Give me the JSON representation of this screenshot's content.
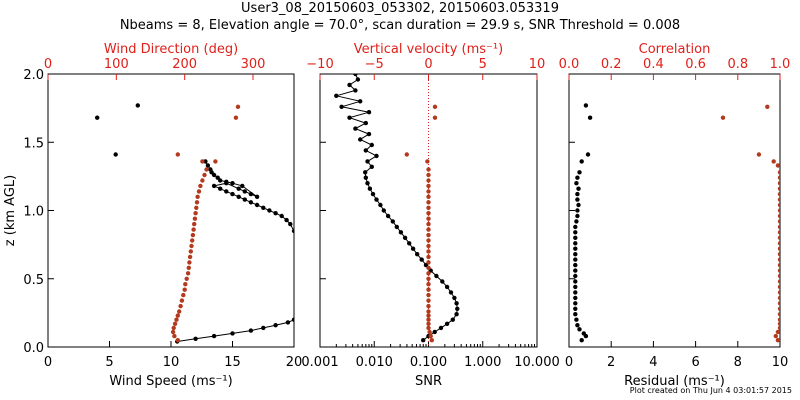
{
  "header": {
    "title": "User3_08_20150603_053302, 20150603.053319",
    "subtitle": "Nbeams = 8, Elevation angle = 70.0°, scan duration = 29.9 s, SNR Threshold = 0.008"
  },
  "footer": {
    "text": "Plot created on Thu Jun  4 03:01:57 2015"
  },
  "colors": {
    "black_series": "#000000",
    "red_series": "#b33a1e",
    "red_axis": "#e0201a"
  },
  "chart_data": [
    {
      "type": "scatter",
      "name": "wind-panel",
      "ylabel": "z (km AGL)",
      "xlabel": "Wind Speed (ms⁻¹)",
      "x2label": "Wind Direction (deg)",
      "xlim": [
        0,
        20
      ],
      "x2lim": [
        0,
        360
      ],
      "ylim": [
        0,
        2.0
      ],
      "x_ticks": [
        "0",
        "5",
        "10",
        "15",
        "20"
      ],
      "x2_ticks": [
        "0",
        "100",
        "200",
        "300"
      ],
      "y_ticks": [
        "0.0",
        "0.5",
        "1.0",
        "1.5",
        "2.0"
      ],
      "series": [
        {
          "color": "black",
          "connected": true,
          "points": [
            [
              10.5,
              0.04
            ],
            [
              12.0,
              0.06
            ],
            [
              13.5,
              0.08
            ],
            [
              15.0,
              0.1
            ],
            [
              16.5,
              0.12
            ],
            [
              17.5,
              0.14
            ],
            [
              18.5,
              0.16
            ],
            [
              19.5,
              0.18
            ],
            [
              20.0,
              0.2
            ],
            [
              20.0,
              0.85
            ],
            [
              19.7,
              0.9
            ],
            [
              19.4,
              0.93
            ],
            [
              19.0,
              0.96
            ],
            [
              18.5,
              0.98
            ],
            [
              18.0,
              1.0
            ],
            [
              17.5,
              1.02
            ],
            [
              17.0,
              1.04
            ],
            [
              16.5,
              1.06
            ],
            [
              16.0,
              1.08
            ],
            [
              15.5,
              1.1
            ],
            [
              15.0,
              1.12
            ],
            [
              14.5,
              1.14
            ],
            [
              14.0,
              1.16
            ],
            [
              13.5,
              1.18
            ],
            [
              14.5,
              1.2
            ],
            [
              15.5,
              1.16
            ],
            [
              16.0,
              1.14
            ],
            [
              16.5,
              1.12
            ],
            [
              17.0,
              1.1
            ],
            [
              15.8,
              1.18
            ],
            [
              15.0,
              1.2
            ],
            [
              14.5,
              1.21
            ],
            [
              14.0,
              1.22
            ],
            [
              13.8,
              1.24
            ],
            [
              13.5,
              1.26
            ],
            [
              13.3,
              1.28
            ],
            [
              13.2,
              1.3
            ],
            [
              13.0,
              1.33
            ],
            [
              12.8,
              1.36
            ]
          ]
        },
        {
          "color": "black",
          "connected": false,
          "points": [
            [
              7.3,
              1.77
            ],
            [
              4.0,
              1.68
            ],
            [
              5.5,
              1.41
            ]
          ]
        },
        {
          "color": "red",
          "connected": false,
          "axis": "x2",
          "points": [
            [
              190,
              0.05
            ],
            [
              185,
              0.08
            ],
            [
              183,
              0.11
            ],
            [
              184,
              0.14
            ],
            [
              186,
              0.17
            ],
            [
              188,
              0.2
            ],
            [
              190,
              0.23
            ],
            [
              192,
              0.26
            ],
            [
              194,
              0.3
            ],
            [
              196,
              0.34
            ],
            [
              198,
              0.38
            ],
            [
              200,
              0.42
            ],
            [
              201,
              0.46
            ],
            [
              203,
              0.5
            ],
            [
              205,
              0.54
            ],
            [
              206,
              0.58
            ],
            [
              207,
              0.62
            ],
            [
              208,
              0.66
            ],
            [
              209,
              0.7
            ],
            [
              210,
              0.74
            ],
            [
              211,
              0.78
            ],
            [
              212,
              0.82
            ],
            [
              213,
              0.86
            ],
            [
              214,
              0.9
            ],
            [
              215,
              0.94
            ],
            [
              216,
              0.98
            ],
            [
              217,
              1.02
            ],
            [
              218,
              1.06
            ],
            [
              219,
              1.1
            ],
            [
              221,
              1.14
            ],
            [
              223,
              1.18
            ],
            [
              226,
              1.22
            ],
            [
              229,
              1.26
            ],
            [
              232,
              1.3
            ],
            [
              226,
              1.36
            ],
            [
              245,
              1.36
            ],
            [
              190,
              1.41
            ],
            [
              275,
              1.68
            ],
            [
              278,
              1.76
            ]
          ]
        }
      ]
    },
    {
      "type": "line",
      "name": "vertical-velocity-panel",
      "xlabel": "SNR",
      "x2label": "Vertical velocity (ms⁻¹)",
      "xscale": "log",
      "xlim": [
        0.001,
        10.0
      ],
      "x2lim": [
        -10,
        10
      ],
      "ylim": [
        0,
        2.0
      ],
      "x_ticks": [
        "0.001",
        "0.010",
        "0.100",
        "1.000",
        "10.000"
      ],
      "x2_ticks": [
        "−10",
        "−5",
        "0",
        "5",
        "10"
      ],
      "reference_line_x2": 0,
      "series": [
        {
          "color": "black",
          "connected": true,
          "points": [
            [
              0.08,
              0.05
            ],
            [
              0.1,
              0.08
            ],
            [
              0.13,
              0.11
            ],
            [
              0.17,
              0.14
            ],
            [
              0.22,
              0.17
            ],
            [
              0.28,
              0.2
            ],
            [
              0.33,
              0.24
            ],
            [
              0.34,
              0.28
            ],
            [
              0.33,
              0.32
            ],
            [
              0.3,
              0.36
            ],
            [
              0.26,
              0.4
            ],
            [
              0.22,
              0.44
            ],
            [
              0.18,
              0.48
            ],
            [
              0.14,
              0.52
            ],
            [
              0.11,
              0.56
            ],
            [
              0.09,
              0.6
            ],
            [
              0.075,
              0.64
            ],
            [
              0.062,
              0.68
            ],
            [
              0.052,
              0.72
            ],
            [
              0.044,
              0.76
            ],
            [
              0.037,
              0.8
            ],
            [
              0.031,
              0.84
            ],
            [
              0.026,
              0.88
            ],
            [
              0.022,
              0.92
            ],
            [
              0.018,
              0.96
            ],
            [
              0.015,
              1.0
            ],
            [
              0.013,
              1.04
            ],
            [
              0.011,
              1.08
            ],
            [
              0.0095,
              1.12
            ],
            [
              0.0083,
              1.16
            ],
            [
              0.0075,
              1.2
            ],
            [
              0.007,
              1.24
            ],
            [
              0.0068,
              1.28
            ],
            [
              0.009,
              1.32
            ],
            [
              0.0075,
              1.36
            ],
            [
              0.011,
              1.4
            ],
            [
              0.007,
              1.44
            ],
            [
              0.009,
              1.48
            ],
            [
              0.0055,
              1.52
            ],
            [
              0.008,
              1.56
            ],
            [
              0.0045,
              1.6
            ],
            [
              0.007,
              1.64
            ],
            [
              0.0035,
              1.68
            ],
            [
              0.008,
              1.72
            ],
            [
              0.0025,
              1.76
            ],
            [
              0.0055,
              1.8
            ],
            [
              0.002,
              1.84
            ],
            [
              0.0045,
              1.88
            ],
            [
              0.0035,
              1.92
            ],
            [
              0.005,
              1.96
            ],
            [
              0.0045,
              2.0
            ]
          ]
        },
        {
          "color": "red",
          "connected": false,
          "axis": "x2",
          "points": [
            [
              0.3,
              0.05
            ],
            [
              0.2,
              0.08
            ],
            [
              0.1,
              0.11
            ],
            [
              0.0,
              0.14
            ],
            [
              0.0,
              0.17
            ],
            [
              0.0,
              0.2
            ],
            [
              0.0,
              0.23
            ],
            [
              0.0,
              0.26
            ],
            [
              0.0,
              0.3
            ],
            [
              0.0,
              0.34
            ],
            [
              0.0,
              0.38
            ],
            [
              0.0,
              0.42
            ],
            [
              0.0,
              0.46
            ],
            [
              0.0,
              0.5
            ],
            [
              0.0,
              0.54
            ],
            [
              0.0,
              0.58
            ],
            [
              0.0,
              0.62
            ],
            [
              0.0,
              0.66
            ],
            [
              0.0,
              0.7
            ],
            [
              0.0,
              0.74
            ],
            [
              0.0,
              0.78
            ],
            [
              0.0,
              0.82
            ],
            [
              0.0,
              0.86
            ],
            [
              0.0,
              0.9
            ],
            [
              0.0,
              0.94
            ],
            [
              0.0,
              0.98
            ],
            [
              0.0,
              1.02
            ],
            [
              0.0,
              1.06
            ],
            [
              0.0,
              1.1
            ],
            [
              0.0,
              1.14
            ],
            [
              0.0,
              1.18
            ],
            [
              0.0,
              1.22
            ],
            [
              0.0,
              1.26
            ],
            [
              0.0,
              1.3
            ],
            [
              -0.1,
              1.36
            ],
            [
              -2.0,
              1.41
            ],
            [
              0.6,
              1.68
            ],
            [
              0.6,
              1.76
            ]
          ]
        }
      ]
    },
    {
      "type": "scatter",
      "name": "correlation-panel",
      "xlabel": "Residual (ms⁻¹)",
      "x2label": "Correlation",
      "xlim": [
        0,
        10
      ],
      "x2lim": [
        0,
        1.0
      ],
      "ylim": [
        0,
        2.0
      ],
      "x_ticks": [
        "0",
        "2",
        "4",
        "6",
        "8",
        "10"
      ],
      "x2_ticks": [
        "0.0",
        "0.2",
        "0.4",
        "0.6",
        "0.8",
        "1.0"
      ],
      "series": [
        {
          "color": "black",
          "connected": false,
          "points": [
            [
              0.6,
              0.05
            ],
            [
              0.8,
              0.08
            ],
            [
              0.7,
              0.1
            ],
            [
              0.5,
              0.13
            ],
            [
              0.4,
              0.16
            ],
            [
              0.35,
              0.2
            ],
            [
              0.3,
              0.24
            ],
            [
              0.3,
              0.28
            ],
            [
              0.3,
              0.32
            ],
            [
              0.3,
              0.36
            ],
            [
              0.3,
              0.4
            ],
            [
              0.3,
              0.44
            ],
            [
              0.3,
              0.48
            ],
            [
              0.3,
              0.52
            ],
            [
              0.3,
              0.56
            ],
            [
              0.3,
              0.6
            ],
            [
              0.3,
              0.64
            ],
            [
              0.3,
              0.68
            ],
            [
              0.3,
              0.72
            ],
            [
              0.3,
              0.76
            ],
            [
              0.3,
              0.8
            ],
            [
              0.3,
              0.84
            ],
            [
              0.3,
              0.88
            ],
            [
              0.35,
              0.92
            ],
            [
              0.4,
              0.96
            ],
            [
              0.4,
              1.0
            ],
            [
              0.45,
              1.04
            ],
            [
              0.4,
              1.08
            ],
            [
              0.4,
              1.12
            ],
            [
              0.45,
              1.16
            ],
            [
              0.35,
              1.2
            ],
            [
              0.4,
              1.24
            ],
            [
              0.5,
              1.28
            ],
            [
              0.6,
              1.36
            ],
            [
              0.9,
              1.41
            ],
            [
              1.0,
              1.68
            ],
            [
              0.8,
              1.77
            ]
          ]
        },
        {
          "color": "red",
          "connected": false,
          "axis": "x2",
          "points": [
            [
              0.99,
              0.05
            ],
            [
              0.98,
              0.08
            ],
            [
              0.99,
              0.11
            ],
            [
              1.0,
              0.14
            ],
            [
              1.0,
              0.17
            ],
            [
              1.0,
              0.2
            ],
            [
              1.0,
              0.24
            ],
            [
              1.0,
              0.28
            ],
            [
              1.0,
              0.32
            ],
            [
              1.0,
              0.36
            ],
            [
              1.0,
              0.4
            ],
            [
              1.0,
              0.44
            ],
            [
              1.0,
              0.48
            ],
            [
              1.0,
              0.52
            ],
            [
              1.0,
              0.56
            ],
            [
              1.0,
              0.6
            ],
            [
              1.0,
              0.64
            ],
            [
              1.0,
              0.68
            ],
            [
              1.0,
              0.72
            ],
            [
              1.0,
              0.76
            ],
            [
              1.0,
              0.8
            ],
            [
              1.0,
              0.84
            ],
            [
              1.0,
              0.88
            ],
            [
              1.0,
              0.92
            ],
            [
              1.0,
              0.96
            ],
            [
              1.0,
              1.0
            ],
            [
              1.0,
              1.04
            ],
            [
              1.0,
              1.08
            ],
            [
              1.0,
              1.12
            ],
            [
              1.0,
              1.16
            ],
            [
              1.0,
              1.2
            ],
            [
              1.0,
              1.24
            ],
            [
              1.0,
              1.28
            ],
            [
              0.99,
              1.33
            ],
            [
              0.97,
              1.36
            ],
            [
              0.9,
              1.41
            ],
            [
              0.73,
              1.68
            ],
            [
              0.94,
              1.76
            ]
          ]
        }
      ]
    }
  ]
}
